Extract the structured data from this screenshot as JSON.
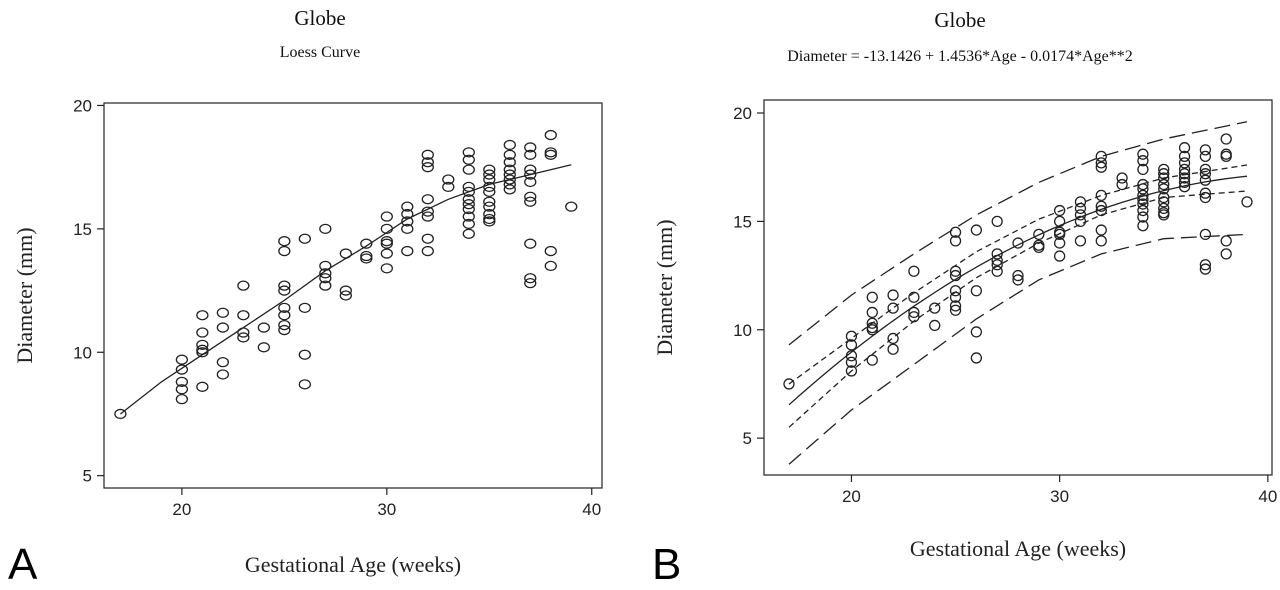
{
  "chart_data": [
    {
      "panel_label": "A",
      "type": "scatter",
      "title": "Globe",
      "subtitle": "Loess Curve",
      "xlabel": "Gestational Age (weeks)",
      "ylabel": "Diameter (mm)",
      "xlim": [
        16.2,
        40.5
      ],
      "ylim": [
        4.5,
        20.1
      ],
      "xticks": [
        20,
        30,
        40
      ],
      "yticks": [
        5,
        10,
        15,
        20
      ],
      "marker": "circle",
      "grid": false,
      "points": [
        [
          17,
          7.5
        ],
        [
          20,
          9.7
        ],
        [
          20,
          9.3
        ],
        [
          20,
          8.8
        ],
        [
          20,
          8.5
        ],
        [
          20,
          8.1
        ],
        [
          21,
          11.5
        ],
        [
          21,
          10.8
        ],
        [
          21,
          10.3
        ],
        [
          21,
          10.1
        ],
        [
          21,
          10.0
        ],
        [
          21,
          8.6
        ],
        [
          22,
          11.6
        ],
        [
          22,
          11.0
        ],
        [
          22,
          9.6
        ],
        [
          22,
          9.1
        ],
        [
          23,
          12.7
        ],
        [
          23,
          11.5
        ],
        [
          23,
          10.8
        ],
        [
          23,
          10.6
        ],
        [
          24,
          11.0
        ],
        [
          24,
          10.2
        ],
        [
          25,
          14.5
        ],
        [
          25,
          14.1
        ],
        [
          25,
          12.7
        ],
        [
          25,
          12.5
        ],
        [
          25,
          11.8
        ],
        [
          25,
          11.5
        ],
        [
          25,
          11.1
        ],
        [
          25,
          10.9
        ],
        [
          26,
          14.6
        ],
        [
          26,
          11.8
        ],
        [
          26,
          9.9
        ],
        [
          26,
          8.7
        ],
        [
          27,
          15.0
        ],
        [
          27,
          13.5
        ],
        [
          27,
          13.2
        ],
        [
          27,
          13.0
        ],
        [
          27,
          12.7
        ],
        [
          28,
          14.0
        ],
        [
          28,
          12.5
        ],
        [
          28,
          12.3
        ],
        [
          29,
          14.4
        ],
        [
          29,
          13.9
        ],
        [
          29,
          13.8
        ],
        [
          30,
          15.5
        ],
        [
          30,
          15.0
        ],
        [
          30,
          14.5
        ],
        [
          30,
          14.4
        ],
        [
          30,
          14.0
        ],
        [
          30,
          13.4
        ],
        [
          31,
          15.9
        ],
        [
          31,
          15.6
        ],
        [
          31,
          15.3
        ],
        [
          31,
          15.0
        ],
        [
          31,
          14.1
        ],
        [
          32,
          18.0
        ],
        [
          32,
          17.7
        ],
        [
          32,
          17.5
        ],
        [
          32,
          16.2
        ],
        [
          32,
          15.7
        ],
        [
          32,
          15.5
        ],
        [
          32,
          14.6
        ],
        [
          32,
          14.1
        ],
        [
          33,
          17.0
        ],
        [
          33,
          16.7
        ],
        [
          34,
          18.1
        ],
        [
          34,
          17.8
        ],
        [
          34,
          17.4
        ],
        [
          34,
          16.7
        ],
        [
          34,
          16.5
        ],
        [
          34,
          16.2
        ],
        [
          34,
          16.0
        ],
        [
          34,
          15.8
        ],
        [
          34,
          15.5
        ],
        [
          34,
          15.2
        ],
        [
          34,
          14.8
        ],
        [
          35,
          17.4
        ],
        [
          35,
          17.2
        ],
        [
          35,
          17.0
        ],
        [
          35,
          16.7
        ],
        [
          35,
          16.5
        ],
        [
          35,
          16.1
        ],
        [
          35,
          15.9
        ],
        [
          35,
          15.6
        ],
        [
          35,
          15.4
        ],
        [
          35,
          15.3
        ],
        [
          36,
          18.4
        ],
        [
          36,
          18.0
        ],
        [
          36,
          17.7
        ],
        [
          36,
          17.4
        ],
        [
          36,
          17.2
        ],
        [
          36,
          17.0
        ],
        [
          36,
          16.8
        ],
        [
          36,
          16.6
        ],
        [
          37,
          18.3
        ],
        [
          37,
          18.0
        ],
        [
          37,
          17.4
        ],
        [
          37,
          17.2
        ],
        [
          37,
          16.9
        ],
        [
          37,
          16.3
        ],
        [
          37,
          16.1
        ],
        [
          37,
          14.4
        ],
        [
          37,
          13.0
        ],
        [
          37,
          12.8
        ],
        [
          38,
          18.8
        ],
        [
          38,
          18.1
        ],
        [
          38,
          18.0
        ],
        [
          38,
          14.1
        ],
        [
          38,
          13.5
        ],
        [
          39,
          15.9
        ]
      ],
      "fit_curve": {
        "name": "Loess Curve",
        "style": "solid",
        "x": [
          17,
          19,
          21,
          23,
          25,
          27,
          29,
          31,
          33,
          35,
          37,
          39
        ],
        "y": [
          7.5,
          8.8,
          9.9,
          11.0,
          12.1,
          13.3,
          14.3,
          15.4,
          16.2,
          16.8,
          17.2,
          17.6
        ]
      }
    },
    {
      "panel_label": "B",
      "type": "scatter",
      "title": "Globe",
      "subtitle": "Diameter = -13.1426 + 1.4536*Age - 0.0174*Age**2",
      "xlabel": "Gestational Age (weeks)",
      "ylabel": "Diameter (mm)",
      "xlim": [
        15.8,
        40.2
      ],
      "ylim": [
        3.3,
        20.6
      ],
      "xticks": [
        20,
        30,
        40
      ],
      "yticks": [
        5,
        10,
        15,
        20
      ],
      "marker": "circle",
      "grid": false,
      "points": [
        [
          17,
          7.5
        ],
        [
          20,
          9.7
        ],
        [
          20,
          9.3
        ],
        [
          20,
          8.8
        ],
        [
          20,
          8.5
        ],
        [
          20,
          8.1
        ],
        [
          21,
          11.5
        ],
        [
          21,
          10.8
        ],
        [
          21,
          10.3
        ],
        [
          21,
          10.1
        ],
        [
          21,
          10.0
        ],
        [
          21,
          8.6
        ],
        [
          22,
          11.6
        ],
        [
          22,
          11.0
        ],
        [
          22,
          9.6
        ],
        [
          22,
          9.1
        ],
        [
          23,
          12.7
        ],
        [
          23,
          11.5
        ],
        [
          23,
          10.8
        ],
        [
          23,
          10.6
        ],
        [
          24,
          11.0
        ],
        [
          24,
          10.2
        ],
        [
          25,
          14.5
        ],
        [
          25,
          14.1
        ],
        [
          25,
          12.7
        ],
        [
          25,
          12.5
        ],
        [
          25,
          11.8
        ],
        [
          25,
          11.5
        ],
        [
          25,
          11.1
        ],
        [
          25,
          10.9
        ],
        [
          26,
          14.6
        ],
        [
          26,
          11.8
        ],
        [
          26,
          9.9
        ],
        [
          26,
          8.7
        ],
        [
          27,
          15.0
        ],
        [
          27,
          13.5
        ],
        [
          27,
          13.2
        ],
        [
          27,
          13.0
        ],
        [
          27,
          12.7
        ],
        [
          28,
          14.0
        ],
        [
          28,
          12.5
        ],
        [
          28,
          12.3
        ],
        [
          29,
          14.4
        ],
        [
          29,
          13.9
        ],
        [
          29,
          13.8
        ],
        [
          30,
          15.5
        ],
        [
          30,
          15.0
        ],
        [
          30,
          14.5
        ],
        [
          30,
          14.4
        ],
        [
          30,
          14.0
        ],
        [
          30,
          13.4
        ],
        [
          31,
          15.9
        ],
        [
          31,
          15.6
        ],
        [
          31,
          15.3
        ],
        [
          31,
          15.0
        ],
        [
          31,
          14.1
        ],
        [
          32,
          18.0
        ],
        [
          32,
          17.7
        ],
        [
          32,
          17.5
        ],
        [
          32,
          16.2
        ],
        [
          32,
          15.7
        ],
        [
          32,
          15.5
        ],
        [
          32,
          14.6
        ],
        [
          32,
          14.1
        ],
        [
          33,
          17.0
        ],
        [
          33,
          16.7
        ],
        [
          34,
          18.1
        ],
        [
          34,
          17.8
        ],
        [
          34,
          17.4
        ],
        [
          34,
          16.7
        ],
        [
          34,
          16.5
        ],
        [
          34,
          16.2
        ],
        [
          34,
          16.0
        ],
        [
          34,
          15.8
        ],
        [
          34,
          15.5
        ],
        [
          34,
          15.2
        ],
        [
          34,
          14.8
        ],
        [
          35,
          17.4
        ],
        [
          35,
          17.2
        ],
        [
          35,
          17.0
        ],
        [
          35,
          16.7
        ],
        [
          35,
          16.5
        ],
        [
          35,
          16.1
        ],
        [
          35,
          15.9
        ],
        [
          35,
          15.6
        ],
        [
          35,
          15.4
        ],
        [
          35,
          15.3
        ],
        [
          36,
          18.4
        ],
        [
          36,
          18.0
        ],
        [
          36,
          17.7
        ],
        [
          36,
          17.4
        ],
        [
          36,
          17.2
        ],
        [
          36,
          17.0
        ],
        [
          36,
          16.8
        ],
        [
          36,
          16.6
        ],
        [
          37,
          18.3
        ],
        [
          37,
          18.0
        ],
        [
          37,
          17.4
        ],
        [
          37,
          17.2
        ],
        [
          37,
          16.9
        ],
        [
          37,
          16.3
        ],
        [
          37,
          16.1
        ],
        [
          37,
          14.4
        ],
        [
          37,
          13.0
        ],
        [
          37,
          12.8
        ],
        [
          38,
          18.8
        ],
        [
          38,
          18.1
        ],
        [
          38,
          18.0
        ],
        [
          38,
          14.1
        ],
        [
          38,
          13.5
        ],
        [
          39,
          15.9
        ]
      ],
      "fit": {
        "intercept": -13.1426,
        "linear": 1.4536,
        "quadratic": -0.0174,
        "x_range": [
          17,
          39
        ]
      },
      "bands": {
        "x": [
          17,
          20,
          23,
          26,
          29,
          32,
          35,
          39
        ],
        "confidence_upper": [
          7.5,
          9.6,
          11.7,
          13.6,
          15.1,
          16.2,
          17.0,
          17.6
        ],
        "confidence_lower": [
          5.5,
          8.1,
          10.4,
          12.4,
          14.0,
          15.3,
          16.1,
          16.4
        ],
        "prediction_upper": [
          9.3,
          11.6,
          13.5,
          15.3,
          16.8,
          18.0,
          18.8,
          19.6
        ],
        "prediction_lower": [
          3.8,
          6.3,
          8.4,
          10.5,
          12.3,
          13.5,
          14.2,
          14.4
        ]
      }
    }
  ]
}
